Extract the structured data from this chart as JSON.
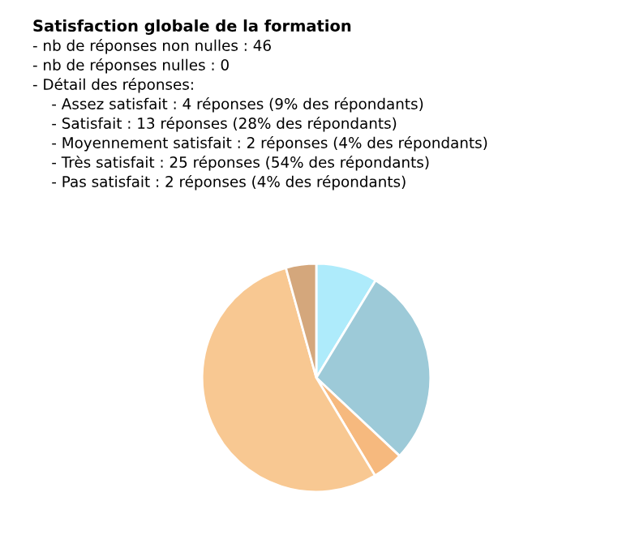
{
  "chart_data": {
    "type": "pie",
    "title": "Satisfaction globale de la formation",
    "annotations": [
      "- nb de réponses non nulles : 46",
      "- nb de réponses nulles : 0",
      "- Détail des réponses:",
      "    - Assez satisfait : 4 réponses (9% des répondants)",
      "    - Satisfait : 13 réponses (28% des répondants)",
      "    - Moyennement satisfait : 2 réponses (4% des répondants)",
      "    - Très satisfait : 25 réponses (54% des répondants)",
      "    - Pas satisfait : 2 réponses (4% des répondants)"
    ],
    "categories": [
      null,
      null,
      null,
      null,
      null
    ],
    "values": [
      8.7,
      28.3,
      4.4,
      54.3,
      4.3
    ],
    "colors": [
      "#aeebfb",
      "#9dcad8",
      "#f6b97e",
      "#f8c892",
      "#d4a77c"
    ]
  }
}
